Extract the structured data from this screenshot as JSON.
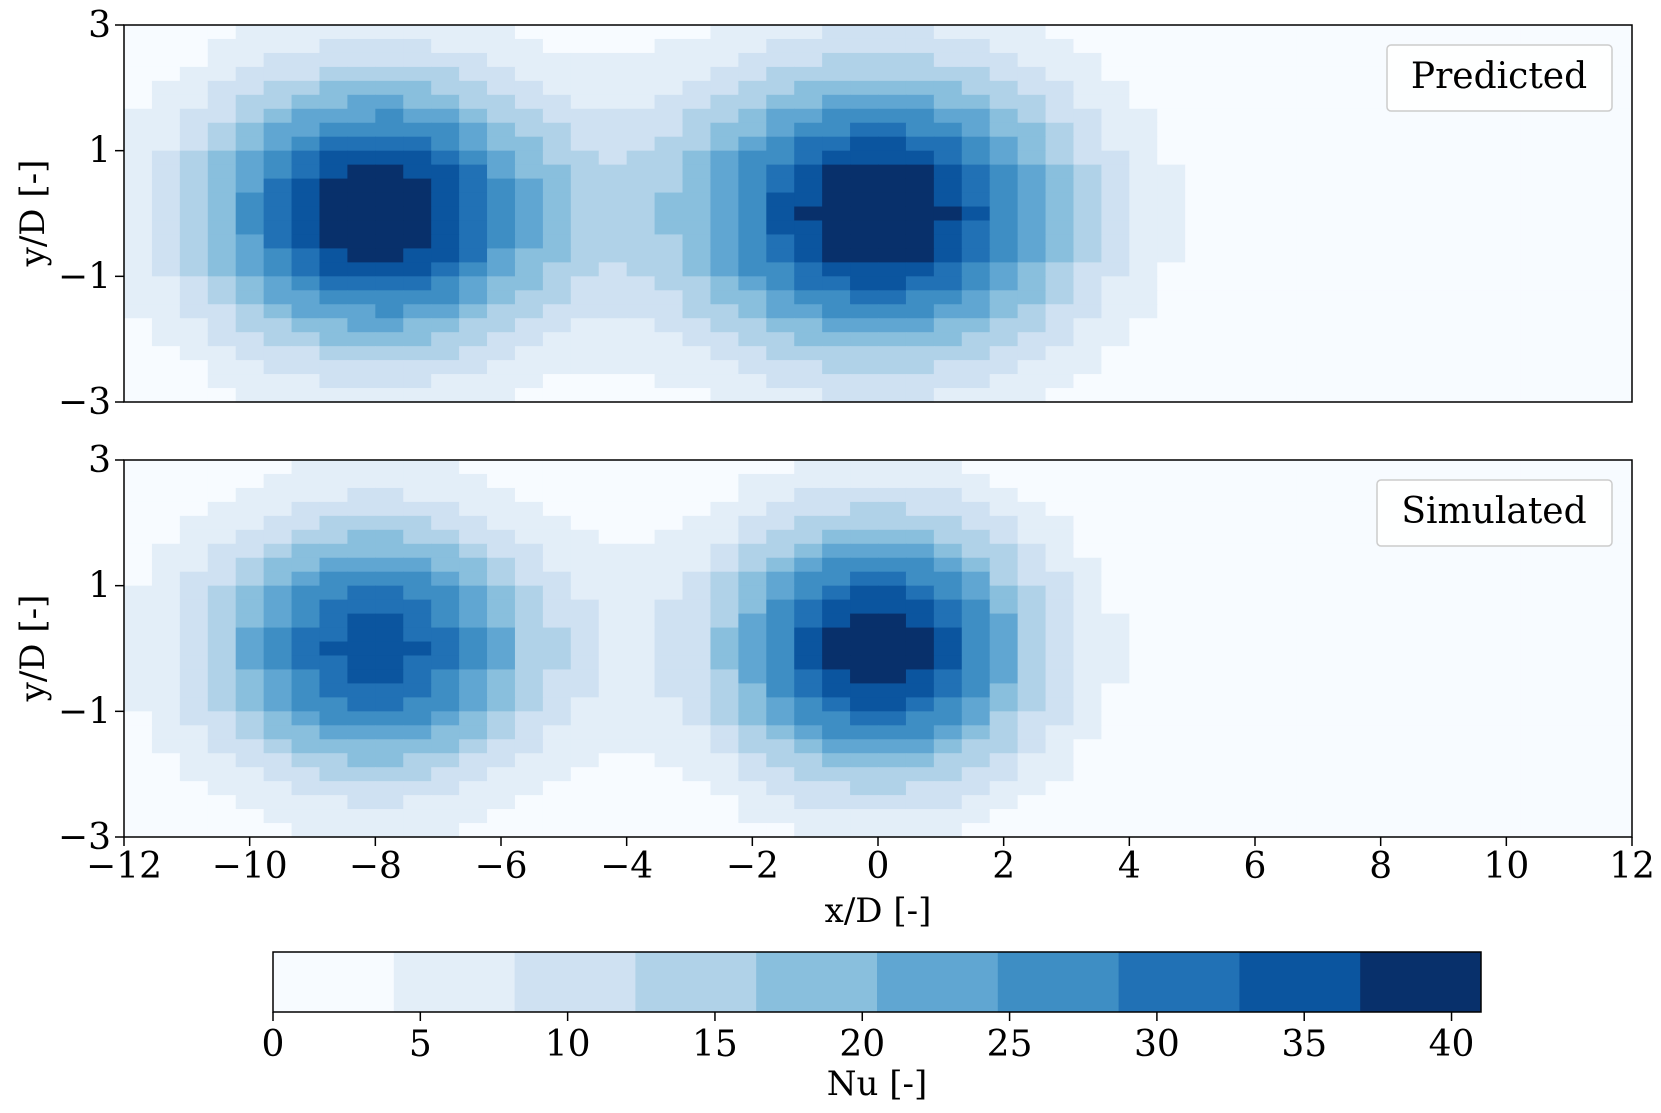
{
  "chart_data": {
    "type": "heatmap",
    "panels": [
      {
        "label": "Predicted",
        "legend_position": "top-right",
        "ylabel": "y/D [-]",
        "yticks": [
          "3",
          "1",
          "−1",
          "−3"
        ],
        "ytick_values": [
          3,
          1,
          -1,
          -3
        ],
        "ylim": [
          -3,
          3
        ],
        "xlim": [
          -12,
          12
        ],
        "blobs": [
          {
            "x": -8,
            "y": 0,
            "peak": 42,
            "radius_x": 3.6,
            "radius_y": 2.7
          },
          {
            "x": 0,
            "y": 0,
            "peak": 42,
            "radius_x": 4.0,
            "radius_y": 2.9
          }
        ]
      },
      {
        "label": "Simulated",
        "legend_position": "top-right",
        "ylabel": "y/D [-]",
        "yticks": [
          "3",
          "1",
          "−1",
          "−3"
        ],
        "ytick_values": [
          3,
          1,
          -1,
          -3
        ],
        "ylim": [
          -3,
          3
        ],
        "xlim": [
          -12,
          12
        ],
        "xlabel": "x/D [-]",
        "xticks": [
          "−12",
          "−10",
          "−8",
          "−6",
          "−4",
          "−2",
          "0",
          "2",
          "4",
          "6",
          "8",
          "10",
          "12"
        ],
        "xtick_values": [
          -12,
          -10,
          -8,
          -6,
          -4,
          -2,
          0,
          2,
          4,
          6,
          8,
          10,
          12
        ],
        "blobs": [
          {
            "x": -8,
            "y": 0,
            "peak": 35,
            "radius_x": 3.5,
            "radius_y": 2.6
          },
          {
            "x": 0,
            "y": 0,
            "peak": 41,
            "radius_x": 3.2,
            "radius_y": 2.6
          }
        ]
      }
    ],
    "colorbar": {
      "label": "Nu [-]",
      "ticks": [
        "0",
        "5",
        "10",
        "15",
        "20",
        "25",
        "30",
        "35",
        "40"
      ],
      "tick_values": [
        0,
        5,
        10,
        15,
        20,
        25,
        30,
        35,
        40
      ],
      "range": [
        0,
        41
      ],
      "levels": 10,
      "colors": [
        "#f7fbff",
        "#e3eef8",
        "#cfe1f2",
        "#b0d2e8",
        "#89bfdd",
        "#60a6d2",
        "#3e8ec4",
        "#2171b5",
        "#0b559f",
        "#08306b"
      ]
    }
  }
}
